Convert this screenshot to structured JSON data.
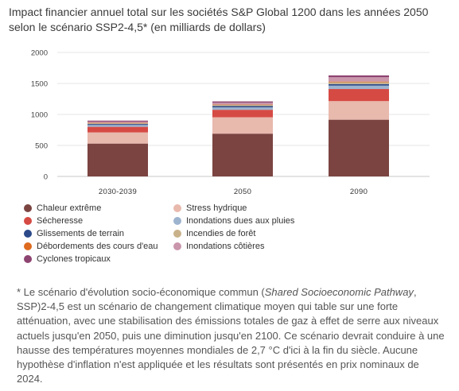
{
  "title": "Impact financier annuel total sur les sociétés S&P Global 1200 dans les années 2050 selon le scénario SSP2-4,5* (en milliards de dollars)",
  "chart_data": {
    "type": "bar",
    "stacked": true,
    "categories": [
      "2030-2039",
      "2050",
      "2090"
    ],
    "ylim": [
      0,
      2000
    ],
    "yticks": [
      0,
      500,
      1000,
      1500,
      2000
    ],
    "grid": true,
    "legend_position": "bottom",
    "series": [
      {
        "name": "Chaleur extrême",
        "color": "#7b4441",
        "values": [
          530,
          690,
          915
        ]
      },
      {
        "name": "Stress hydrique",
        "color": "#e8b9ad",
        "values": [
          180,
          265,
          300
        ]
      },
      {
        "name": "Sécheresse",
        "color": "#d64a44",
        "values": [
          90,
          120,
          195
        ]
      },
      {
        "name": "Inondations dues aux pluies",
        "color": "#9db3ce",
        "values": [
          30,
          40,
          55
        ]
      },
      {
        "name": "Glissements de terrain",
        "color": "#2c4a8a",
        "values": [
          15,
          20,
          25
        ]
      },
      {
        "name": "Incendies de forêt",
        "color": "#c9b28a",
        "values": [
          15,
          20,
          30
        ]
      },
      {
        "name": "Débordements des cours d'eau",
        "color": "#de6b1f",
        "values": [
          5,
          5,
          10
        ]
      },
      {
        "name": "Inondations côtières",
        "color": "#c996ac",
        "values": [
          20,
          30,
          70
        ]
      },
      {
        "name": "Cyclones tropicaux",
        "color": "#8e4470",
        "values": [
          15,
          20,
          30
        ]
      }
    ]
  },
  "legend_order": [
    0,
    1,
    2,
    3,
    4,
    5,
    6,
    7,
    8
  ],
  "note": {
    "prefix": "* Le scénario d'évolution socio-économique commun (",
    "italic": "Shared Socioeconomic Pathway",
    "suffix": ", SSP)2-4,5 est un scénario de changement climatique moyen qui table sur une forte atténuation, avec une stabilisation des émissions totales de gaz à effet de serre aux niveaux actuels jusqu'en 2050, puis une diminution jusqu'en 2100. Ce scénario devrait conduire à une hausse des températures moyennes mondiales de 2,7 °C d'ici à la fin du siècle. Aucune hypothèse d'inflation n'est appliquée et les résultats sont présentés en prix nominaux de 2024."
  }
}
